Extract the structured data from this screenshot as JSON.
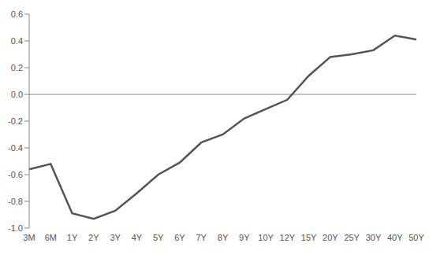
{
  "chart_data": {
    "type": "line",
    "categories": [
      "3M",
      "6M",
      "1Y",
      "2Y",
      "3Y",
      "4Y",
      "5Y",
      "6Y",
      "7Y",
      "8Y",
      "9Y",
      "10Y",
      "12Y",
      "15Y",
      "20Y",
      "25Y",
      "30Y",
      "40Y",
      "50Y"
    ],
    "values": [
      -0.56,
      -0.52,
      -0.89,
      -0.93,
      -0.87,
      -0.74,
      -0.6,
      -0.51,
      -0.36,
      -0.3,
      -0.18,
      -0.11,
      -0.04,
      0.14,
      0.28,
      0.3,
      0.33,
      0.44,
      0.41
    ],
    "color": "#555555",
    "ylim": [
      -1,
      0.6
    ],
    "yticks": [
      {
        "value": -1,
        "label": "-1.0"
      },
      -0.8,
      -0.6,
      -0.4,
      -0.2,
      {
        "value": 0,
        "label": "0.0"
      },
      0.2,
      0.4,
      0.6
    ],
    "grid": false
  }
}
